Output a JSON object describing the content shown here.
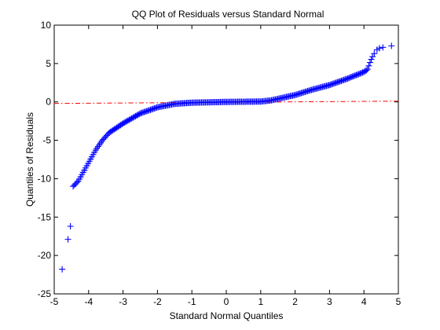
{
  "chart_data": {
    "type": "scatter",
    "marker": "+",
    "title": "QQ Plot of Residuals versus Standard Normal",
    "xlabel": "Standard Normal Quantiles",
    "ylabel": "Quantiles of Residuals",
    "xlim": [
      -5,
      5
    ],
    "ylim": [
      -25,
      10
    ],
    "xticks": [
      "-5",
      "-4",
      "-3",
      "-2",
      "-1",
      "0",
      "1",
      "2",
      "3",
      "4",
      "5"
    ],
    "yticks": [
      "10",
      "5",
      "0",
      "-5",
      "-10",
      "-15",
      "-20",
      "-25"
    ],
    "grid": false,
    "legend": "none",
    "colors": {
      "points": "#0000ff",
      "reference_line": "#ff0000"
    },
    "reference_line": {
      "style": "dash-dot",
      "points": [
        [
          -5,
          -0.2
        ],
        [
          5,
          0.1
        ]
      ]
    },
    "outliers": [
      {
        "x": -4.77,
        "y": -21.8
      },
      {
        "x": -4.6,
        "y": -17.9
      },
      {
        "x": -4.53,
        "y": -16.2
      },
      {
        "x": 4.8,
        "y": 7.3
      },
      {
        "x": 4.55,
        "y": 7.1
      },
      {
        "x": 4.45,
        "y": 7.0
      },
      {
        "x": 4.38,
        "y": 6.8
      },
      {
        "x": 4.3,
        "y": 6.3
      }
    ],
    "curve": [
      {
        "x": -4.45,
        "y": -11.0
      },
      {
        "x": -4.3,
        "y": -10.3
      },
      {
        "x": -4.0,
        "y": -7.9
      },
      {
        "x": -3.8,
        "y": -6.3
      },
      {
        "x": -3.6,
        "y": -5.0
      },
      {
        "x": -3.4,
        "y": -4.0
      },
      {
        "x": -3.0,
        "y": -2.8
      },
      {
        "x": -2.5,
        "y": -1.5
      },
      {
        "x": -2.0,
        "y": -0.7
      },
      {
        "x": -1.5,
        "y": -0.25
      },
      {
        "x": -1.0,
        "y": -0.1
      },
      {
        "x": 0.0,
        "y": 0.0
      },
      {
        "x": 1.0,
        "y": 0.05
      },
      {
        "x": 1.3,
        "y": 0.2
      },
      {
        "x": 1.6,
        "y": 0.5
      },
      {
        "x": 2.0,
        "y": 0.9
      },
      {
        "x": 2.5,
        "y": 1.6
      },
      {
        "x": 3.0,
        "y": 2.2
      },
      {
        "x": 3.5,
        "y": 3.0
      },
      {
        "x": 4.0,
        "y": 3.9
      },
      {
        "x": 4.1,
        "y": 4.2
      },
      {
        "x": 4.2,
        "y": 5.4
      },
      {
        "x": 4.25,
        "y": 5.9
      }
    ],
    "curve_density": 240
  }
}
